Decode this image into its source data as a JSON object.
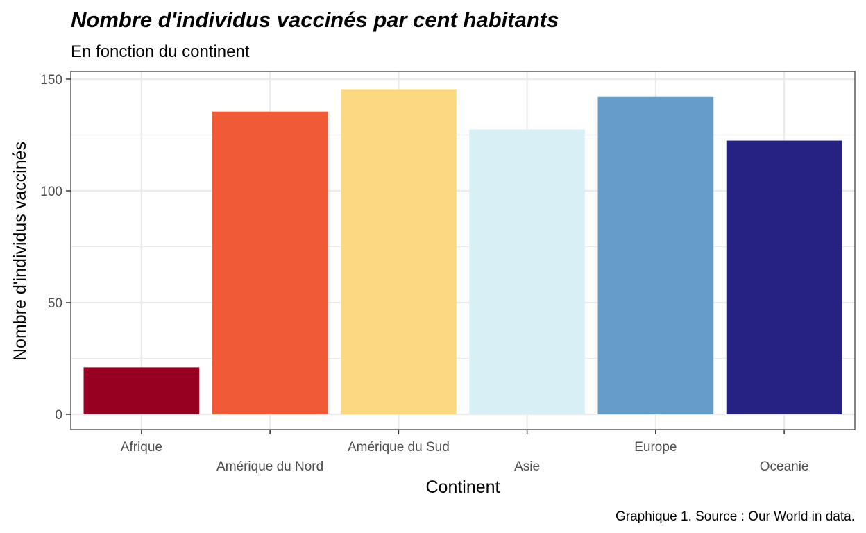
{
  "chart_data": {
    "type": "bar",
    "title": "Nombre d'individus vaccinés par cent habitants",
    "subtitle": "En fonction du continent",
    "xlabel": "Continent",
    "ylabel": "Nombre d'individus vaccinés",
    "caption": "Graphique 1. Source : Our World in data.",
    "categories": [
      "Afrique",
      "Amérique du Nord",
      "Amérique du Sud",
      "Asie",
      "Europe",
      "Oceanie"
    ],
    "values": [
      21,
      135.5,
      145.5,
      127.5,
      142,
      122.5
    ],
    "colors": [
      "#970021",
      "#f05a36",
      "#fcd980",
      "#d9eff6",
      "#659dc8",
      "#262283"
    ],
    "ylim": [
      -7,
      150
    ],
    "yticks": [
      0,
      50,
      100,
      150
    ],
    "grid": true,
    "legend": "none"
  }
}
